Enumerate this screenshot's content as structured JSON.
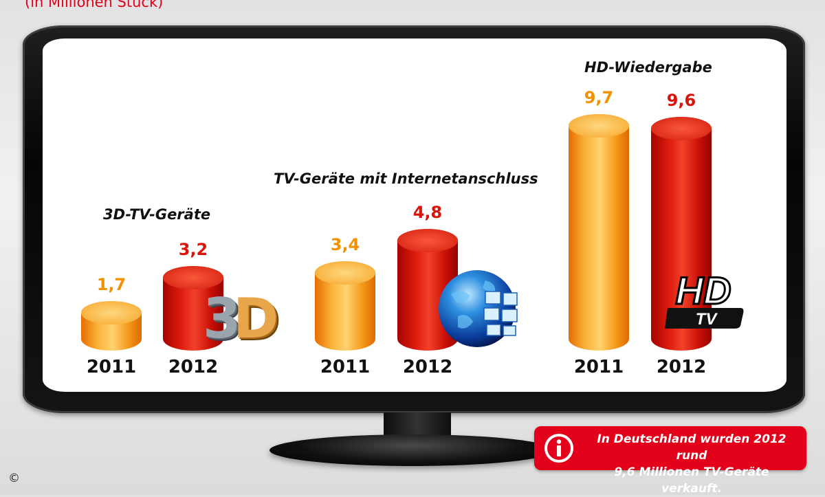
{
  "subtitle": "(in Millionen Stück)",
  "chart_data": {
    "type": "bar",
    "groups": [
      {
        "title": "3D-TV-Geräte",
        "categories": [
          "2011",
          "2012"
        ],
        "values": [
          1.7,
          3.2
        ],
        "labels": [
          "1,7",
          "3,2"
        ]
      },
      {
        "title": "TV-Geräte mit Internetanschluss",
        "categories": [
          "2011",
          "2012"
        ],
        "values": [
          3.4,
          4.8
        ],
        "labels": [
          "3,4",
          "4,8"
        ]
      },
      {
        "title": "HD-Wiedergabe",
        "categories": [
          "2011",
          "2012"
        ],
        "values": [
          9.7,
          9.6
        ],
        "labels": [
          "9,7",
          "9,6"
        ]
      }
    ],
    "colors": {
      "2011": "#f7a21f",
      "2012": "#dc150c"
    }
  },
  "icons": {
    "group1": "3d-icon",
    "group2": "globe-network-icon",
    "group3": "hd-tv-logo"
  },
  "hd_logo": {
    "top": "HD",
    "bottom": "TV"
  },
  "logo_3d": {
    "first": "3",
    "second": "D"
  },
  "info": {
    "icon": "info-icon",
    "line1": "In Deutschland wurden 2012 rund",
    "line2": "9,6 Millionen TV-Geräte verkauft."
  },
  "copyright": "©"
}
